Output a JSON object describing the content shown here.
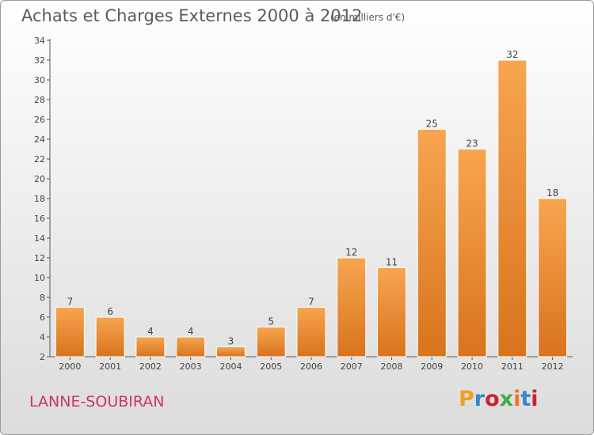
{
  "header": {
    "title": "Achats et Charges Externes 2000 à 2012",
    "subtitle": "(en milliers d'€)"
  },
  "footer": {
    "place": "LANNE-SOUBIRAN",
    "logo": "Proxiti"
  },
  "colors": {
    "bar_light": "#f8a550",
    "bar_dark": "#d9731d",
    "place": "#cc3366",
    "logo_letters": [
      "#f0a020",
      "#3388cc",
      "#cc2233",
      "#44aa44",
      "#ee7722",
      "#3388cc",
      "#cc2233"
    ]
  },
  "chart_data": {
    "type": "bar",
    "title": "Achats et Charges Externes 2000 à 2012",
    "subtitle": "(en milliers d'€)",
    "categories": [
      "2000",
      "2001",
      "2002",
      "2003",
      "2004",
      "2005",
      "2006",
      "2007",
      "2008",
      "2009",
      "2010",
      "2011",
      "2012"
    ],
    "values": [
      7,
      6,
      4,
      4,
      3,
      5,
      7,
      12,
      11,
      25,
      23,
      32,
      18
    ],
    "ylim": [
      2,
      34
    ],
    "yticks": [
      2,
      4,
      6,
      8,
      10,
      12,
      14,
      16,
      18,
      20,
      22,
      24,
      26,
      28,
      30,
      32,
      34
    ],
    "grid": false,
    "legend": "none"
  }
}
